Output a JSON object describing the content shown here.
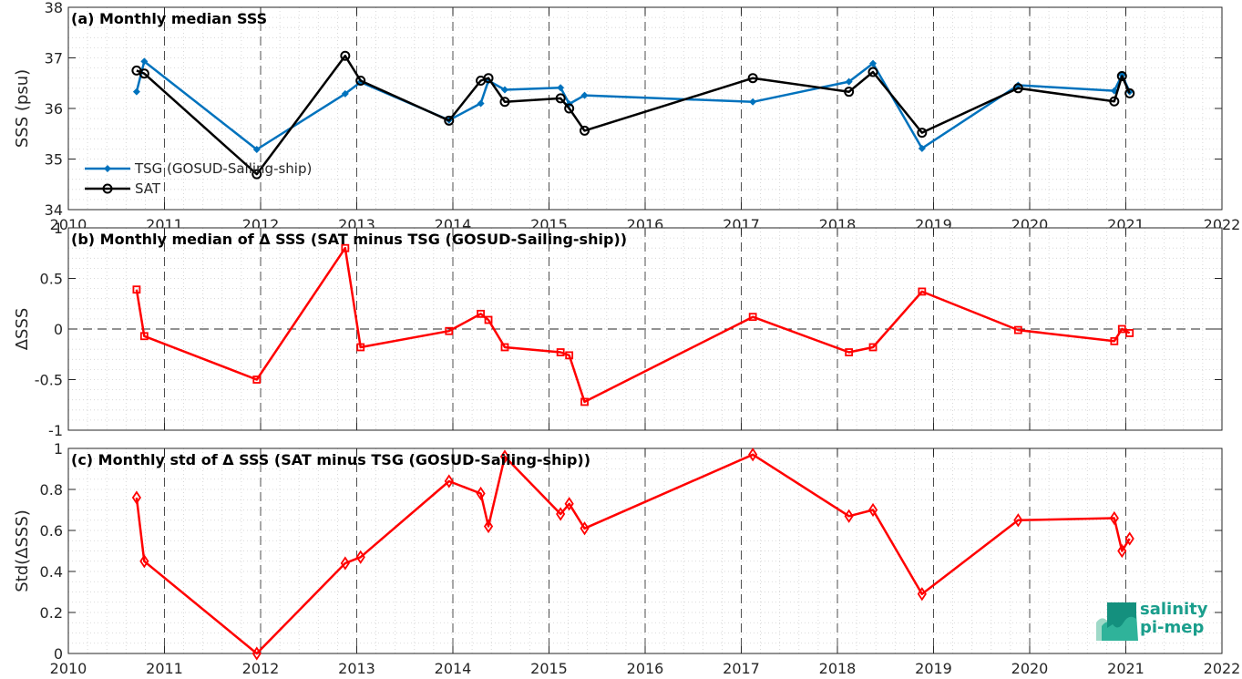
{
  "logo": {
    "line1": "salinity",
    "line2": "pi-mep"
  },
  "colors": {
    "tsg": "#0072BD",
    "sat": "#000000",
    "delta": "#FF0000"
  },
  "chart_data": [
    {
      "type": "line",
      "title": "(a) Monthly median SSS",
      "xlabel": "",
      "ylabel": "SSS (psu)",
      "xlim": [
        2010,
        2022
      ],
      "ylim": [
        34,
        38
      ],
      "xticks": [
        "2010",
        "2011",
        "2012",
        "2013",
        "2014",
        "2015",
        "2016",
        "2017",
        "2018",
        "2019",
        "2020",
        "2021",
        "2022"
      ],
      "yticks": [
        "34",
        "35",
        "36",
        "37",
        "38"
      ],
      "legend": {
        "position": "bottom-left",
        "entries": [
          "TSG (GOSUD-Sailing-ship)",
          "SAT"
        ]
      },
      "grid": true,
      "series": [
        {
          "name": "TSG (GOSUD-Sailing-ship)",
          "marker": "dot",
          "x": [
            2010.71,
            2010.79,
            2011.96,
            2012.88,
            2013.04,
            2013.96,
            2014.29,
            2014.37,
            2014.54,
            2015.12,
            2015.21,
            2015.37,
            2017.12,
            2018.12,
            2018.37,
            2018.88,
            2019.88,
            2020.88,
            2020.96,
            2021.04
          ],
          "values": [
            36.33,
            36.93,
            35.19,
            36.29,
            36.52,
            35.77,
            36.1,
            36.55,
            36.37,
            36.41,
            36.09,
            36.26,
            36.13,
            36.53,
            36.89,
            35.21,
            36.46,
            36.35,
            36.66,
            36.33
          ]
        },
        {
          "name": "SAT",
          "marker": "circle",
          "x": [
            2010.71,
            2010.79,
            2011.96,
            2012.88,
            2013.04,
            2013.96,
            2014.29,
            2014.37,
            2014.54,
            2015.12,
            2015.21,
            2015.37,
            2017.12,
            2018.12,
            2018.37,
            2018.88,
            2019.88,
            2020.88,
            2020.96,
            2021.04
          ],
          "values": [
            36.75,
            36.69,
            34.7,
            37.04,
            36.55,
            35.76,
            36.55,
            36.6,
            36.13,
            36.2,
            36.0,
            35.56,
            36.6,
            36.33,
            36.72,
            35.52,
            36.4,
            36.14,
            36.64,
            36.3
          ]
        }
      ]
    },
    {
      "type": "line",
      "title": "(b) Monthly median of Δ SSS (SAT minus TSG (GOSUD-Sailing-ship))",
      "xlabel": "",
      "ylabel": "ΔSSS",
      "xlim": [
        2010,
        2022
      ],
      "ylim": [
        -1,
        1
      ],
      "xticks": [],
      "yticks": [
        "-1",
        "-0.5",
        "0",
        "0.5",
        "1"
      ],
      "grid": true,
      "series": [
        {
          "marker": "square",
          "x": [
            2010.71,
            2010.79,
            2011.96,
            2012.88,
            2013.04,
            2013.96,
            2014.29,
            2014.37,
            2014.54,
            2015.12,
            2015.21,
            2015.37,
            2017.12,
            2018.12,
            2018.37,
            2018.88,
            2019.88,
            2020.88,
            2020.96,
            2021.04
          ],
          "values": [
            0.39,
            -0.07,
            -0.5,
            0.8,
            -0.18,
            -0.02,
            0.15,
            0.09,
            -0.18,
            -0.23,
            -0.26,
            -0.72,
            0.12,
            -0.23,
            -0.18,
            0.37,
            -0.01,
            -0.12,
            0.0,
            -0.04
          ]
        }
      ]
    },
    {
      "type": "line",
      "title": "(c) Monthly std of Δ SSS (SAT minus TSG (GOSUD-Sailing-ship))",
      "xlabel": "",
      "ylabel": "Std(ΔSSS)",
      "xlim": [
        2010,
        2022
      ],
      "ylim": [
        0,
        1
      ],
      "xticks": [
        "2010",
        "2011",
        "2012",
        "2013",
        "2014",
        "2015",
        "2016",
        "2017",
        "2018",
        "2019",
        "2020",
        "2021",
        "2022"
      ],
      "yticks": [
        "0",
        "0.2",
        "0.4",
        "0.6",
        "0.8",
        "1"
      ],
      "grid": true,
      "series": [
        {
          "marker": "diamond",
          "x": [
            2010.71,
            2010.79,
            2011.96,
            2012.88,
            2013.04,
            2013.96,
            2014.29,
            2014.37,
            2014.54,
            2015.12,
            2015.21,
            2015.37,
            2017.12,
            2018.12,
            2018.37,
            2018.88,
            2019.88,
            2020.88,
            2020.96,
            2021.04
          ],
          "values": [
            0.76,
            0.45,
            0.0,
            0.44,
            0.47,
            0.84,
            0.78,
            0.62,
            0.96,
            0.68,
            0.73,
            0.61,
            0.97,
            0.67,
            0.7,
            0.29,
            0.65,
            0.66,
            0.5,
            0.56
          ]
        }
      ]
    }
  ]
}
